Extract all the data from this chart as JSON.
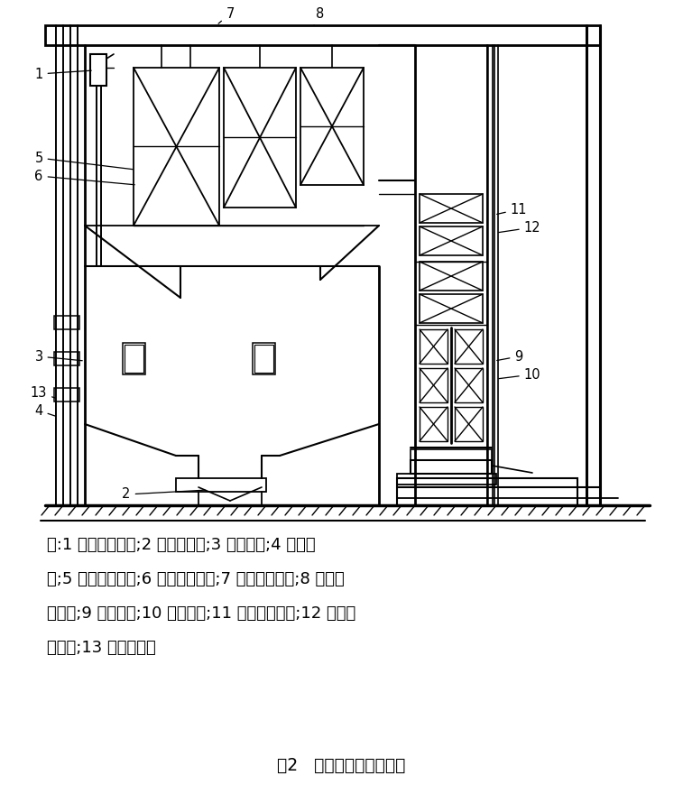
{
  "title": "图2   火电厂燃烧系统结构",
  "caption_lines": [
    "注:1 为汽水分离器;2 为除渣装置;3 为燃烧器;4 为下降",
    "管;5 为前屏过热器;6 为后屏过热器;7 为高温过热器;8 为高温",
    "再热器;9 为空预器;10 为省煤器;11 为低温过热器;12 为低温",
    "再热器;13 为水冷壁。"
  ],
  "bg_color": "#ffffff",
  "line_color": "#000000",
  "figsize": [
    7.57,
    8.8
  ],
  "dpi": 100
}
